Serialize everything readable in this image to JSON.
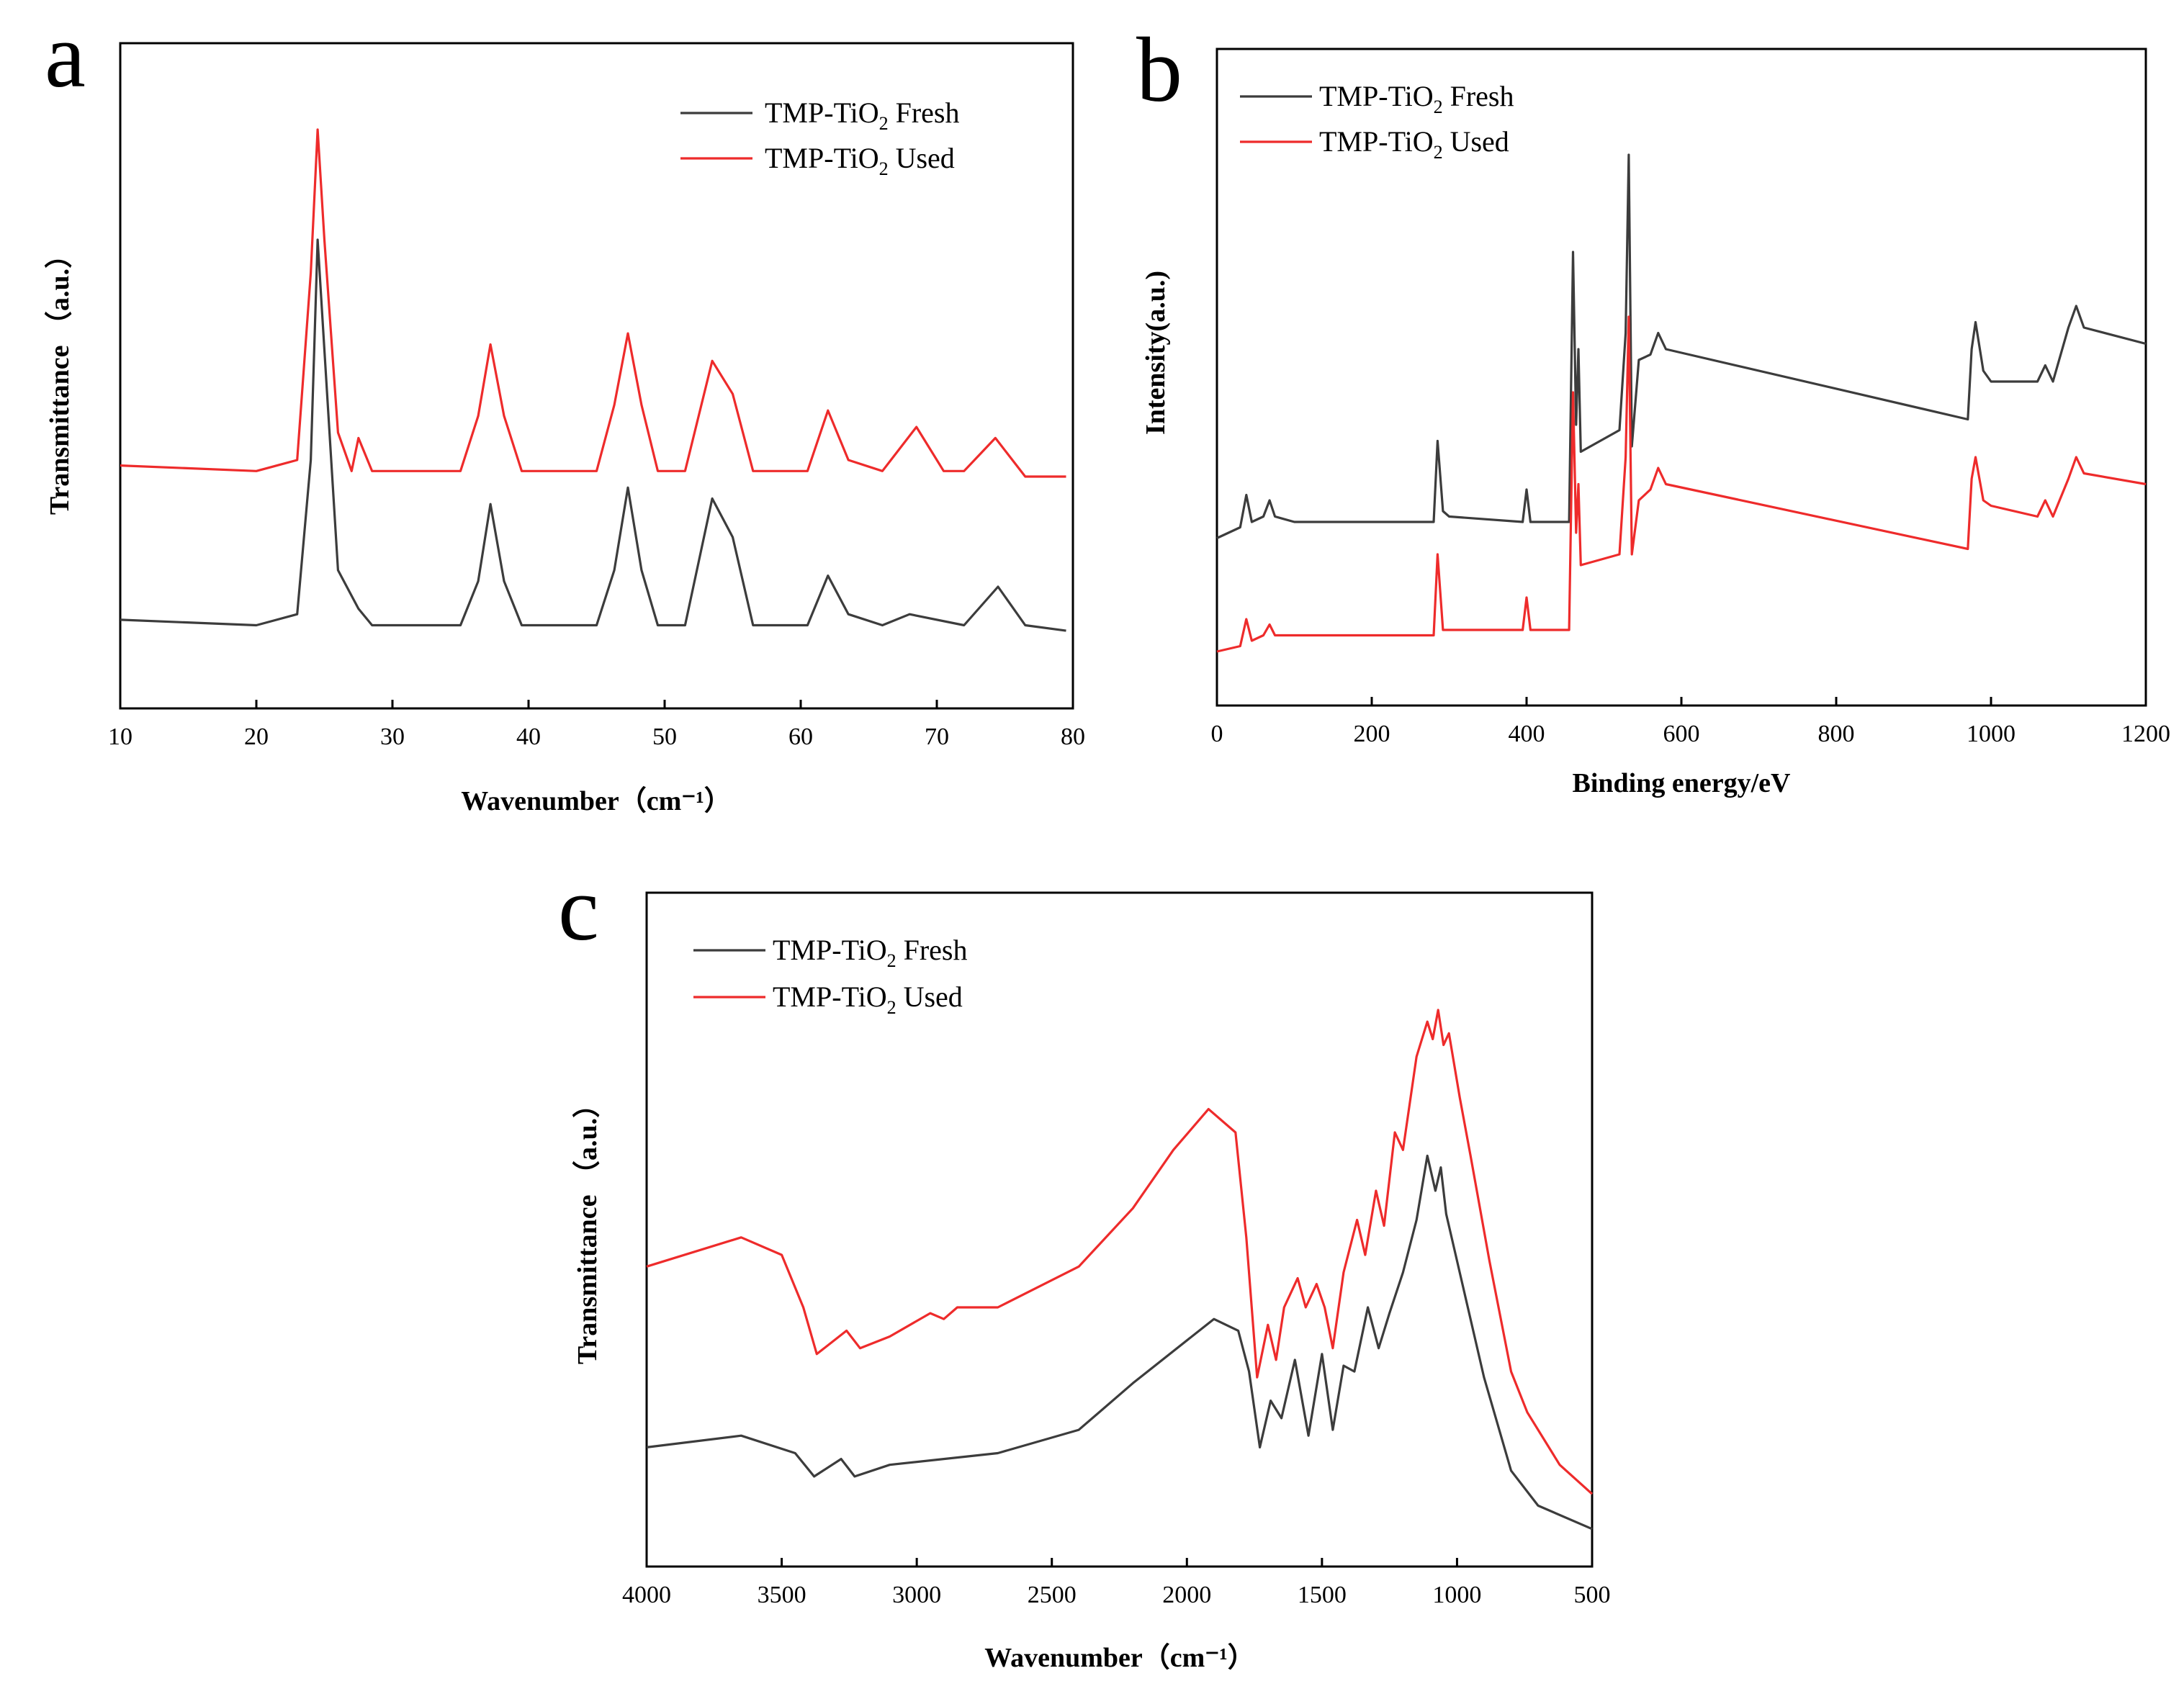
{
  "colors": {
    "fresh": "#3c3c3c",
    "used": "#ee2b2b"
  },
  "chart_data": [
    {
      "panel": "a",
      "type": "line",
      "title": "",
      "xlabel": "Wavenumber（cm⁻¹）",
      "ylabel": "Transmittance （a.u.）",
      "xlim": [
        10,
        80
      ],
      "xticks": [
        "10",
        "20",
        "30",
        "40",
        "50",
        "60",
        "70",
        "80"
      ],
      "ylim": [
        0,
        1
      ],
      "legend_position": "top-right",
      "series": [
        {
          "name": "TMP-TiO2 Fresh",
          "legend_main": "TMP-TiO",
          "legend_sub": "2",
          "legend_rest": " Fresh",
          "x": [
            10,
            20,
            23,
            24,
            24.5,
            25,
            26,
            27.5,
            28.5,
            35,
            36.3,
            37.2,
            38.2,
            39.5,
            45,
            46.3,
            47.3,
            48.3,
            49.5,
            51.5,
            53.5,
            55,
            56.5,
            60.5,
            62,
            63.5,
            66,
            68,
            72,
            74.5,
            76.5,
            79.5
          ],
          "y": [
            0.11,
            0.1,
            0.12,
            0.4,
            0.8,
            0.6,
            0.2,
            0.13,
            0.1,
            0.1,
            0.18,
            0.32,
            0.18,
            0.1,
            0.1,
            0.2,
            0.35,
            0.2,
            0.1,
            0.1,
            0.33,
            0.26,
            0.1,
            0.1,
            0.19,
            0.12,
            0.1,
            0.12,
            0.1,
            0.17,
            0.1,
            0.09
          ]
        },
        {
          "name": "TMP-TiO2 Used",
          "legend_main": "TMP-TiO",
          "legend_sub": "2",
          "legend_rest": " Used",
          "x": [
            10,
            20,
            23,
            24,
            24.5,
            25,
            26,
            27,
            27.5,
            28.5,
            35,
            36.3,
            37.2,
            38.2,
            39.5,
            45,
            46.3,
            47.3,
            48.3,
            49.5,
            51.5,
            53.5,
            55,
            56.5,
            60.5,
            62,
            63.5,
            66,
            68.5,
            70.5,
            72,
            74.3,
            76.5,
            79.5
          ],
          "y": [
            0.39,
            0.38,
            0.4,
            0.74,
            1.0,
            0.8,
            0.45,
            0.38,
            0.44,
            0.38,
            0.38,
            0.48,
            0.61,
            0.48,
            0.38,
            0.38,
            0.5,
            0.63,
            0.5,
            0.38,
            0.38,
            0.58,
            0.52,
            0.38,
            0.38,
            0.49,
            0.4,
            0.38,
            0.46,
            0.38,
            0.38,
            0.44,
            0.37,
            0.37
          ]
        }
      ]
    },
    {
      "panel": "b",
      "type": "line",
      "title": "",
      "xlabel": "Binding energy/eV",
      "ylabel": "Intensity(a.u.)",
      "xlim": [
        0,
        1200
      ],
      "xticks": [
        "0",
        "200",
        "400",
        "600",
        "800",
        "1000",
        "1200"
      ],
      "ylim": [
        0,
        1
      ],
      "legend_position": "top-left",
      "series": [
        {
          "name": "TMP-TiO2 Fresh",
          "legend_main": "TMP-TiO",
          "legend_sub": "2",
          "legend_rest": " Fresh",
          "x": [
            0,
            30,
            38,
            45,
            60,
            68,
            75,
            100,
            280,
            285,
            292,
            300,
            395,
            400,
            405,
            455,
            460,
            464,
            467,
            470,
            520,
            528,
            532,
            536,
            545,
            560,
            570,
            580,
            970,
            975,
            980,
            990,
            1000,
            1060,
            1070,
            1080,
            1100,
            1110,
            1120,
            1200
          ],
          "y": [
            0.27,
            0.29,
            0.35,
            0.3,
            0.31,
            0.34,
            0.31,
            0.3,
            0.3,
            0.45,
            0.32,
            0.31,
            0.3,
            0.36,
            0.3,
            0.3,
            0.8,
            0.48,
            0.62,
            0.43,
            0.47,
            0.65,
            0.98,
            0.44,
            0.6,
            0.61,
            0.65,
            0.62,
            0.49,
            0.62,
            0.67,
            0.58,
            0.56,
            0.56,
            0.59,
            0.56,
            0.66,
            0.7,
            0.66,
            0.63
          ]
        },
        {
          "name": "TMP-TiO2 Used",
          "legend_main": "TMP-TiO",
          "legend_sub": "2",
          "legend_rest": " Used",
          "x": [
            0,
            30,
            38,
            45,
            60,
            68,
            75,
            100,
            280,
            285,
            292,
            300,
            395,
            400,
            405,
            455,
            460,
            464,
            467,
            470,
            520,
            528,
            532,
            536,
            545,
            560,
            570,
            580,
            970,
            975,
            980,
            990,
            1000,
            1060,
            1070,
            1080,
            1100,
            1110,
            1120,
            1200
          ],
          "y": [
            0.06,
            0.07,
            0.12,
            0.08,
            0.09,
            0.11,
            0.09,
            0.09,
            0.09,
            0.24,
            0.1,
            0.1,
            0.1,
            0.16,
            0.1,
            0.1,
            0.54,
            0.28,
            0.37,
            0.22,
            0.24,
            0.42,
            0.68,
            0.24,
            0.34,
            0.36,
            0.4,
            0.37,
            0.25,
            0.38,
            0.42,
            0.34,
            0.33,
            0.31,
            0.34,
            0.31,
            0.38,
            0.42,
            0.39,
            0.37
          ]
        }
      ]
    },
    {
      "panel": "c",
      "type": "line",
      "title": "",
      "xlabel": "Wavenumber（cm⁻¹）",
      "ylabel": "Transmittance （a.u.）",
      "xlim": [
        4000,
        500
      ],
      "xticks": [
        "4000",
        "3500",
        "3000",
        "2500",
        "2000",
        "1500",
        "1000",
        "500"
      ],
      "ylim": [
        0,
        1
      ],
      "legend_position": "top-left",
      "series": [
        {
          "name": "TMP-TiO2 Fresh",
          "legend_main": "TMP-TiO",
          "legend_sub": "2",
          "legend_rest": " Fresh",
          "x": [
            4000,
            3650,
            3450,
            3380,
            3280,
            3230,
            3100,
            2700,
            2400,
            2200,
            1900,
            1810,
            1770,
            1730,
            1690,
            1650,
            1600,
            1550,
            1500,
            1460,
            1420,
            1380,
            1330,
            1290,
            1250,
            1200,
            1150,
            1110,
            1080,
            1060,
            1040,
            1000,
            960,
            900,
            800,
            700,
            500
          ],
          "y": [
            0.16,
            0.18,
            0.15,
            0.11,
            0.14,
            0.11,
            0.13,
            0.15,
            0.19,
            0.27,
            0.38,
            0.36,
            0.29,
            0.16,
            0.24,
            0.21,
            0.31,
            0.18,
            0.32,
            0.19,
            0.3,
            0.29,
            0.4,
            0.33,
            0.39,
            0.46,
            0.55,
            0.66,
            0.6,
            0.64,
            0.56,
            0.48,
            0.4,
            0.28,
            0.12,
            0.06,
            0.02
          ]
        },
        {
          "name": "TMP-TiO2 Used",
          "legend_main": "TMP-TiO",
          "legend_sub": "2",
          "legend_rest": " Used",
          "x": [
            4000,
            3650,
            3500,
            3420,
            3370,
            3260,
            3210,
            3100,
            2950,
            2900,
            2850,
            2700,
            2400,
            2200,
            2050,
            1920,
            1820,
            1780,
            1740,
            1700,
            1670,
            1640,
            1590,
            1560,
            1520,
            1490,
            1460,
            1420,
            1370,
            1340,
            1300,
            1270,
            1230,
            1200,
            1150,
            1110,
            1090,
            1070,
            1050,
            1030,
            990,
            950,
            880,
            800,
            740,
            620,
            500
          ],
          "y": [
            0.47,
            0.52,
            0.49,
            0.4,
            0.32,
            0.36,
            0.33,
            0.35,
            0.39,
            0.38,
            0.4,
            0.4,
            0.47,
            0.57,
            0.67,
            0.74,
            0.7,
            0.52,
            0.28,
            0.37,
            0.31,
            0.4,
            0.45,
            0.4,
            0.44,
            0.4,
            0.33,
            0.46,
            0.55,
            0.49,
            0.6,
            0.54,
            0.7,
            0.67,
            0.83,
            0.89,
            0.86,
            0.91,
            0.85,
            0.87,
            0.76,
            0.66,
            0.48,
            0.29,
            0.22,
            0.13,
            0.08
          ]
        }
      ]
    }
  ]
}
